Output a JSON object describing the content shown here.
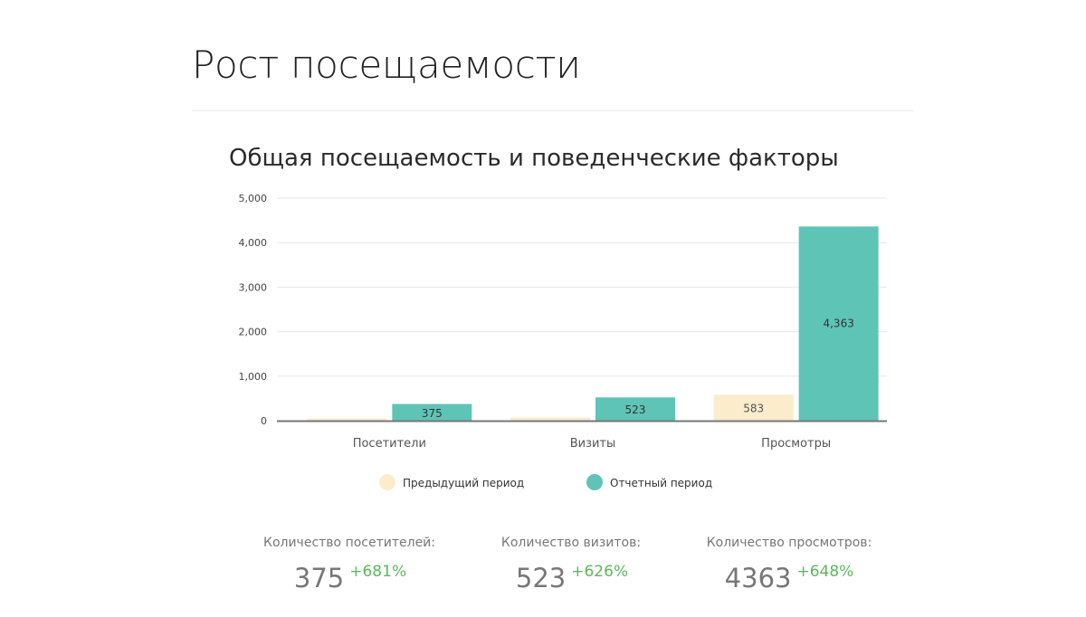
{
  "page": {
    "title": "Рост посещаемости"
  },
  "colors": {
    "previous": "#fbeccb",
    "current": "#5ec4b6",
    "grid": "#e6e6e6",
    "axis": "#777777",
    "increase": "#5cb85c"
  },
  "chart_data": {
    "type": "bar",
    "title": "Общая посещаемость и поведенческие факторы",
    "categories": [
      "Посетители",
      "Визиты",
      "Просмотры"
    ],
    "series": [
      {
        "name": "Предыдущий период",
        "values": [
          48,
          72,
          583
        ],
        "labels": [
          "",
          "",
          "583"
        ]
      },
      {
        "name": "Отчетный период",
        "values": [
          375,
          523,
          4363
        ],
        "labels": [
          "375",
          "523",
          "4,363"
        ]
      }
    ],
    "ylim": [
      0,
      5000
    ],
    "yticks": [
      "0",
      "1,000",
      "2,000",
      "3,000",
      "4,000",
      "5,000"
    ],
    "grid": true,
    "legend_position": "bottom"
  },
  "stats": [
    {
      "label": "Количество посетителей:",
      "value": "375",
      "change": "+681%"
    },
    {
      "label": "Количество визитов:",
      "value": "523",
      "change": "+626%"
    },
    {
      "label": "Количество просмотров:",
      "value": "4363",
      "change": "+648%"
    }
  ]
}
